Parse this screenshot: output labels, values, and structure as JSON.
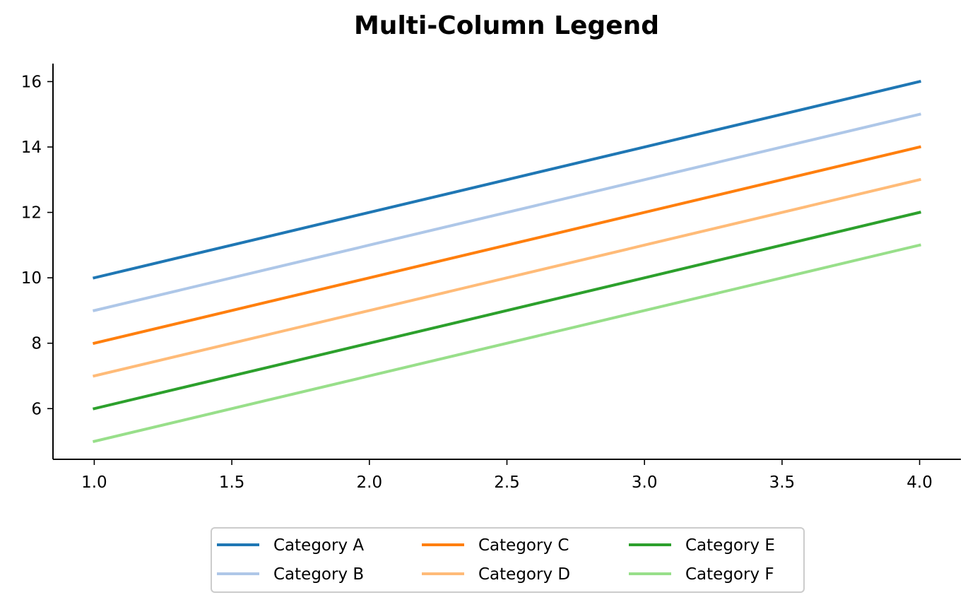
{
  "chart_data": {
    "type": "line",
    "title": "Multi-Column Legend",
    "xlabel": "",
    "ylabel": "",
    "x": [
      1.0,
      2.0,
      3.0,
      4.0
    ],
    "xlim": [
      0.85,
      4.15
    ],
    "ylim": [
      4.45,
      16.55
    ],
    "xticks": [
      1.0,
      1.5,
      2.0,
      2.5,
      3.0,
      3.5,
      4.0
    ],
    "xtick_labels": [
      "1.0",
      "1.5",
      "2.0",
      "2.5",
      "3.0",
      "3.5",
      "4.0"
    ],
    "yticks": [
      6,
      8,
      10,
      12,
      14,
      16
    ],
    "ytick_labels": [
      "6",
      "8",
      "10",
      "12",
      "14",
      "16"
    ],
    "grid": false,
    "legend_placement": "bottom-center, below plot, 3 columns",
    "series": [
      {
        "name": "Category A",
        "color": "#1f77b4",
        "values": [
          10,
          12,
          14,
          16
        ]
      },
      {
        "name": "Category B",
        "color": "#aec7e8",
        "values": [
          9,
          11,
          13,
          15
        ]
      },
      {
        "name": "Category C",
        "color": "#ff7f0e",
        "values": [
          8,
          10,
          12,
          14
        ]
      },
      {
        "name": "Category D",
        "color": "#ffbb78",
        "values": [
          7,
          9,
          11,
          13
        ]
      },
      {
        "name": "Category E",
        "color": "#2ca02c",
        "values": [
          6,
          8,
          10,
          12
        ]
      },
      {
        "name": "Category F",
        "color": "#98df8a",
        "values": [
          5,
          7,
          9,
          11
        ]
      }
    ]
  }
}
